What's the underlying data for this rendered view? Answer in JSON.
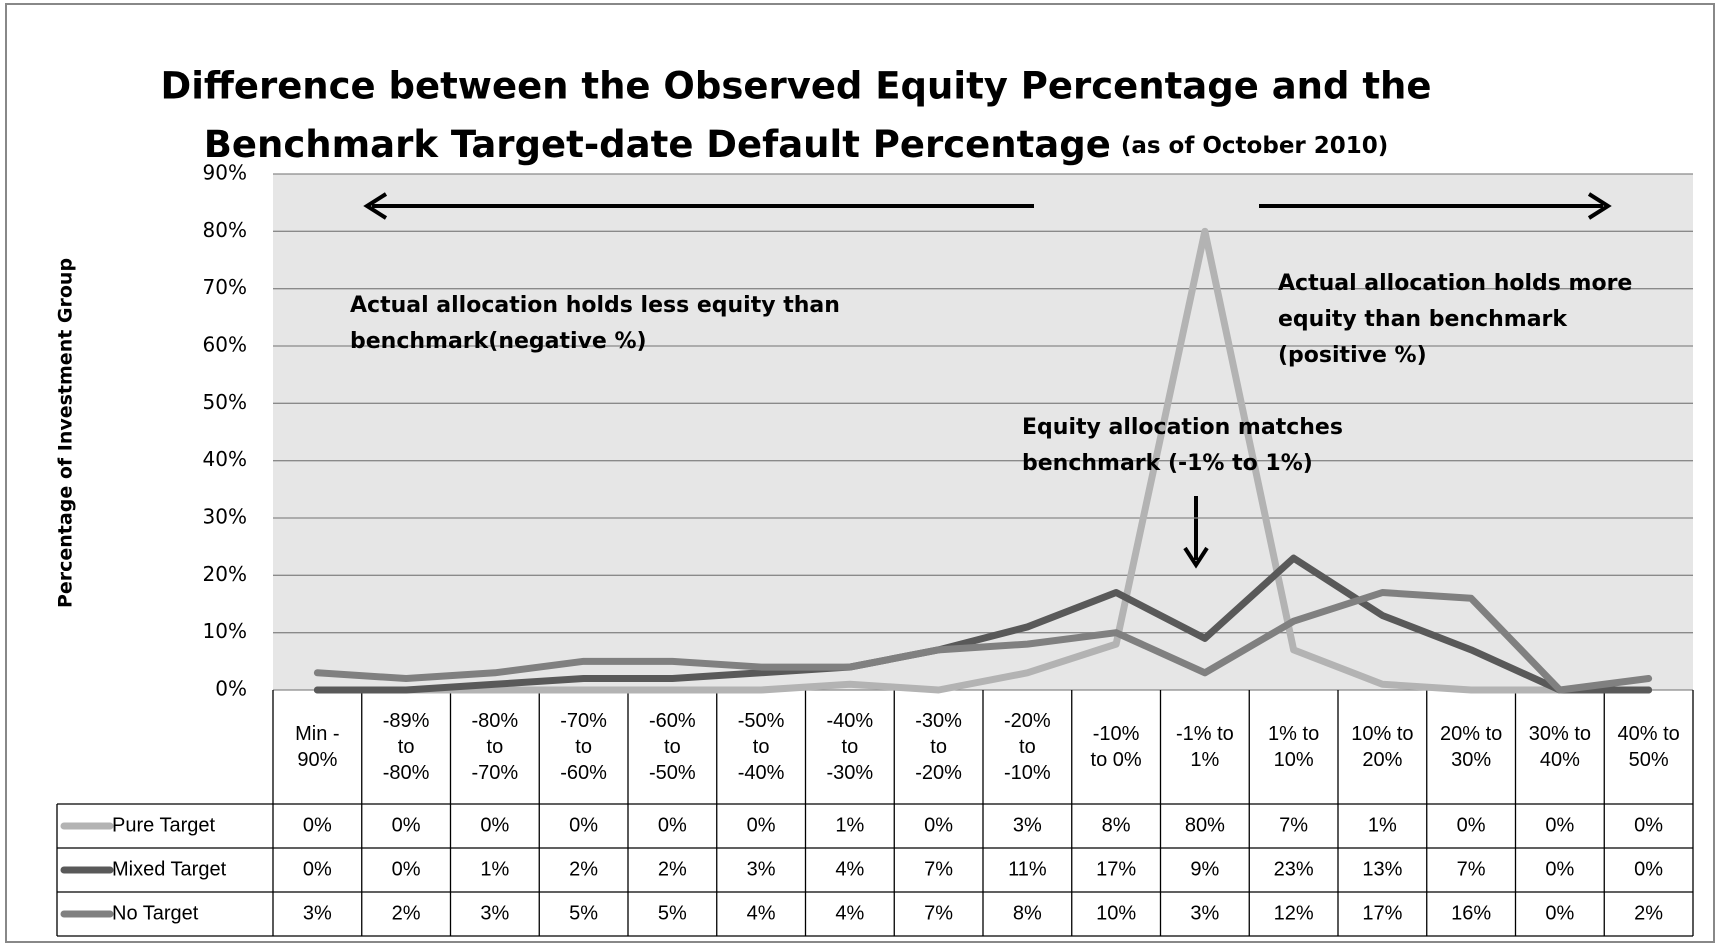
{
  "chart_data": {
    "type": "line",
    "title": [
      "Difference between the Observed Equity Percentage and the",
      "Benchmark Target-date Default Percentage"
    ],
    "subtitle": "(as of October 2010)",
    "y_label": "Percentage of Investment Group",
    "annotations": [
      "Actual allocation holds less equity than benchmark(negative %)",
      "Actual allocation holds more equity than benchmark (positive %)",
      "Equity allocation matches benchmark (-1% to 1%)"
    ],
    "categories": [
      "Min - 90%",
      "-89% to -80%",
      "-80% to -70%",
      "-70% to -60%",
      "-60% to -50%",
      "-50% to -40%",
      "-40% to -30%",
      "-30% to -20%",
      "-20% to -10%",
      "-10% to 0%",
      "-1% to 1%",
      "1% to 10%",
      "10% to 20%",
      "20% to 30%",
      "30% to 40%",
      "40% to 50%"
    ],
    "series": [
      {
        "name": "Pure Target",
        "color": "#b3b3b3",
        "values": [
          0,
          0,
          0,
          0,
          0,
          0,
          1,
          0,
          3,
          8,
          80,
          7,
          1,
          0,
          0,
          0
        ],
        "value_labels": [
          "0%",
          "0%",
          "0%",
          "0%",
          "0%",
          "0%",
          "1%",
          "0%",
          "3%",
          "8%",
          "80%",
          "7%",
          "1%",
          "0%",
          "0%",
          "0%"
        ]
      },
      {
        "name": "Mixed Target",
        "color": "#595959",
        "values": [
          0,
          0,
          1,
          2,
          2,
          3,
          4,
          7,
          11,
          17,
          9,
          23,
          13,
          7,
          0,
          0
        ],
        "value_labels": [
          "0%",
          "0%",
          "1%",
          "2%",
          "2%",
          "3%",
          "4%",
          "7%",
          "11%",
          "17%",
          "9%",
          "23%",
          "13%",
          "7%",
          "0%",
          "0%"
        ]
      },
      {
        "name": "No Target",
        "color": "#808080",
        "values": [
          3,
          2,
          3,
          5,
          5,
          4,
          4,
          7,
          8,
          10,
          3,
          12,
          17,
          16,
          0,
          2
        ],
        "value_labels": [
          "3%",
          "2%",
          "3%",
          "5%",
          "5%",
          "4%",
          "4%",
          "7%",
          "8%",
          "10%",
          "3%",
          "12%",
          "17%",
          "16%",
          "0%",
          "2%"
        ]
      }
    ],
    "ylim": [
      0,
      90
    ],
    "yticks": [
      {
        "value": 0,
        "label": "0%"
      },
      {
        "value": 10,
        "label": "10%"
      },
      {
        "value": 20,
        "label": "20%"
      },
      {
        "value": 30,
        "label": "30%"
      },
      {
        "value": 40,
        "label": "40%"
      },
      {
        "value": 50,
        "label": "50%"
      },
      {
        "value": 60,
        "label": "60%"
      },
      {
        "value": 70,
        "label": "70%"
      },
      {
        "value": 80,
        "label": "80%"
      },
      {
        "value": 90,
        "label": "90%"
      }
    ],
    "grid": true
  }
}
